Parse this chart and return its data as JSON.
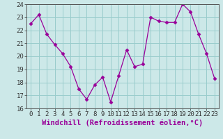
{
  "x": [
    0,
    1,
    2,
    3,
    4,
    5,
    6,
    7,
    8,
    9,
    10,
    11,
    12,
    13,
    14,
    15,
    16,
    17,
    18,
    19,
    20,
    21,
    22,
    23
  ],
  "y": [
    22.5,
    23.2,
    21.7,
    20.9,
    20.2,
    19.2,
    17.5,
    16.7,
    17.8,
    18.4,
    16.5,
    18.5,
    20.5,
    19.2,
    19.4,
    23.0,
    22.7,
    22.6,
    22.6,
    24.0,
    23.4,
    21.7,
    20.2,
    18.3
  ],
  "ylim": [
    16,
    24
  ],
  "yticks": [
    16,
    17,
    18,
    19,
    20,
    21,
    22,
    23,
    24
  ],
  "xticks": [
    0,
    1,
    2,
    3,
    4,
    5,
    6,
    7,
    8,
    9,
    10,
    11,
    12,
    13,
    14,
    15,
    16,
    17,
    18,
    19,
    20,
    21,
    22,
    23
  ],
  "line_color": "#990099",
  "marker": "D",
  "marker_size": 2.5,
  "xlabel": "Windchill (Refroidissement éolien,°C)",
  "bg_color": "#cce8e8",
  "grid_color": "#99cccc",
  "tick_fontsize": 6.5,
  "xlabel_fontsize": 7.5
}
